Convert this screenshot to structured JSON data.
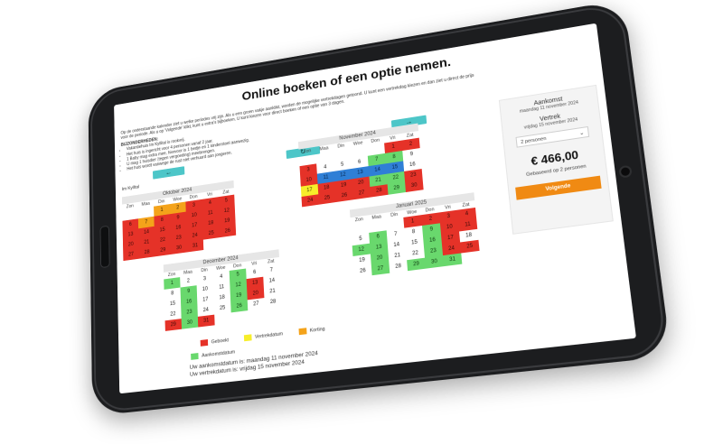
{
  "page": {
    "title": "Online boeken of een optie nemen.",
    "intro": "Op de onderstaande kalender ziet u welke periodes vrij zijn. Als u een groen vakje aanklikt, worden de mogelijke vertrekdagen getoond. U kunt een vertrekdag kiezen en dan ziet u direct de prijs voor de periode. Als u op 'Volgende' klikt, kunt u extra's bijboeken. U kunt kiezen voor direct boeken of een optie van 3 dagen.",
    "bijzonderheden_label": "BIJZONDERHEDEN:",
    "bullets": [
      "Vakantiehuis Im Kyllital is rookvrij.",
      "Het huis is ingericht voor 4 personen vanaf 2 jaar.",
      "1 Baby mag extra mee, hiervoor is 1 bedje en 1 kinderstoel aanwezig.",
      "U mag 1 huisdier (tegen vergoeding) meebrengen.",
      "Het huis wordt vanwege de rust niet verhuurd aan jongeren."
    ],
    "location": "Im Kylltal",
    "nav": {
      "prev": "←",
      "refresh": "↻",
      "next": "→"
    }
  },
  "weekdays": [
    "Zon",
    "Maa",
    "Din",
    "Woe",
    "Don",
    "Vri",
    "Zat"
  ],
  "months": [
    {
      "name": "Oktober 2024",
      "days": [
        {
          "n": "",
          "s": "blank"
        },
        {
          "n": "",
          "s": "blank"
        },
        {
          "n": "1",
          "s": "orange"
        },
        {
          "n": "2",
          "s": "orange"
        },
        {
          "n": "3",
          "s": "red"
        },
        {
          "n": "4",
          "s": "red"
        },
        {
          "n": "5",
          "s": "red"
        },
        {
          "n": "6",
          "s": "red"
        },
        {
          "n": "7",
          "s": "orange"
        },
        {
          "n": "8",
          "s": "red"
        },
        {
          "n": "9",
          "s": "red"
        },
        {
          "n": "10",
          "s": "red"
        },
        {
          "n": "11",
          "s": "red"
        },
        {
          "n": "12",
          "s": "red"
        },
        {
          "n": "13",
          "s": "red"
        },
        {
          "n": "14",
          "s": "red"
        },
        {
          "n": "15",
          "s": "red"
        },
        {
          "n": "16",
          "s": "red"
        },
        {
          "n": "17",
          "s": "red"
        },
        {
          "n": "18",
          "s": "red"
        },
        {
          "n": "19",
          "s": "red"
        },
        {
          "n": "20",
          "s": "red"
        },
        {
          "n": "21",
          "s": "red"
        },
        {
          "n": "22",
          "s": "red"
        },
        {
          "n": "23",
          "s": "red"
        },
        {
          "n": "24",
          "s": "red"
        },
        {
          "n": "25",
          "s": "red"
        },
        {
          "n": "26",
          "s": "red"
        },
        {
          "n": "27",
          "s": "red"
        },
        {
          "n": "28",
          "s": "red"
        },
        {
          "n": "29",
          "s": "red"
        },
        {
          "n": "30",
          "s": "red"
        },
        {
          "n": "31",
          "s": "red"
        }
      ]
    },
    {
      "name": "November 2024",
      "days": [
        {
          "n": "",
          "s": "blank"
        },
        {
          "n": "",
          "s": "blank"
        },
        {
          "n": "",
          "s": "blank"
        },
        {
          "n": "",
          "s": "blank"
        },
        {
          "n": "",
          "s": "blank"
        },
        {
          "n": "1",
          "s": "red"
        },
        {
          "n": "2",
          "s": "red"
        },
        {
          "n": "3",
          "s": "red"
        },
        {
          "n": "4",
          "s": "blank"
        },
        {
          "n": "5",
          "s": "blank"
        },
        {
          "n": "6",
          "s": "blank"
        },
        {
          "n": "7",
          "s": "green"
        },
        {
          "n": "8",
          "s": "green"
        },
        {
          "n": "9",
          "s": "blank"
        },
        {
          "n": "10",
          "s": "red"
        },
        {
          "n": "11",
          "s": "blue"
        },
        {
          "n": "12",
          "s": "blue"
        },
        {
          "n": "13",
          "s": "blue"
        },
        {
          "n": "14",
          "s": "blue"
        },
        {
          "n": "15",
          "s": "blue"
        },
        {
          "n": "16",
          "s": "blank"
        },
        {
          "n": "17",
          "s": "yellow"
        },
        {
          "n": "18",
          "s": "red"
        },
        {
          "n": "19",
          "s": "red"
        },
        {
          "n": "20",
          "s": "red"
        },
        {
          "n": "21",
          "s": "green"
        },
        {
          "n": "22",
          "s": "green"
        },
        {
          "n": "23",
          "s": "red"
        },
        {
          "n": "24",
          "s": "red"
        },
        {
          "n": "25",
          "s": "red"
        },
        {
          "n": "26",
          "s": "red"
        },
        {
          "n": "27",
          "s": "red"
        },
        {
          "n": "28",
          "s": "red"
        },
        {
          "n": "29",
          "s": "green"
        },
        {
          "n": "30",
          "s": "red"
        }
      ]
    },
    {
      "name": "December 2024",
      "days": [
        {
          "n": "1",
          "s": "green"
        },
        {
          "n": "2",
          "s": "blank"
        },
        {
          "n": "3",
          "s": "blank"
        },
        {
          "n": "4",
          "s": "blank"
        },
        {
          "n": "5",
          "s": "green"
        },
        {
          "n": "6",
          "s": "blank"
        },
        {
          "n": "7",
          "s": "blank"
        },
        {
          "n": "8",
          "s": "blank"
        },
        {
          "n": "9",
          "s": "green"
        },
        {
          "n": "10",
          "s": "blank"
        },
        {
          "n": "11",
          "s": "blank"
        },
        {
          "n": "12",
          "s": "green"
        },
        {
          "n": "13",
          "s": "red"
        },
        {
          "n": "14",
          "s": "blank"
        },
        {
          "n": "15",
          "s": "blank"
        },
        {
          "n": "16",
          "s": "green"
        },
        {
          "n": "17",
          "s": "blank"
        },
        {
          "n": "18",
          "s": "blank"
        },
        {
          "n": "19",
          "s": "green"
        },
        {
          "n": "20",
          "s": "red"
        },
        {
          "n": "21",
          "s": "blank"
        },
        {
          "n": "22",
          "s": "blank"
        },
        {
          "n": "23",
          "s": "green"
        },
        {
          "n": "24",
          "s": "blank"
        },
        {
          "n": "25",
          "s": "blank"
        },
        {
          "n": "26",
          "s": "green"
        },
        {
          "n": "27",
          "s": "blank"
        },
        {
          "n": "28",
          "s": "blank"
        },
        {
          "n": "29",
          "s": "red"
        },
        {
          "n": "30",
          "s": "green"
        },
        {
          "n": "31",
          "s": "red"
        }
      ]
    },
    {
      "name": "Januari 2025",
      "days": [
        {
          "n": "",
          "s": "blank"
        },
        {
          "n": "",
          "s": "blank"
        },
        {
          "n": "",
          "s": "blank"
        },
        {
          "n": "1",
          "s": "red"
        },
        {
          "n": "2",
          "s": "red"
        },
        {
          "n": "3",
          "s": "red"
        },
        {
          "n": "4",
          "s": "red"
        },
        {
          "n": "5",
          "s": "blank"
        },
        {
          "n": "6",
          "s": "green"
        },
        {
          "n": "7",
          "s": "blank"
        },
        {
          "n": "8",
          "s": "blank"
        },
        {
          "n": "9",
          "s": "green"
        },
        {
          "n": "10",
          "s": "red"
        },
        {
          "n": "11",
          "s": "red"
        },
        {
          "n": "12",
          "s": "green"
        },
        {
          "n": "13",
          "s": "green"
        },
        {
          "n": "14",
          "s": "blank"
        },
        {
          "n": "15",
          "s": "blank"
        },
        {
          "n": "16",
          "s": "green"
        },
        {
          "n": "17",
          "s": "red"
        },
        {
          "n": "18",
          "s": "blank"
        },
        {
          "n": "19",
          "s": "blank"
        },
        {
          "n": "20",
          "s": "green"
        },
        {
          "n": "21",
          "s": "blank"
        },
        {
          "n": "22",
          "s": "blank"
        },
        {
          "n": "23",
          "s": "green"
        },
        {
          "n": "24",
          "s": "red"
        },
        {
          "n": "25",
          "s": "red"
        },
        {
          "n": "26",
          "s": "blank"
        },
        {
          "n": "27",
          "s": "green"
        },
        {
          "n": "28",
          "s": "blank"
        },
        {
          "n": "29",
          "s": "green"
        },
        {
          "n": "30",
          "s": "green"
        },
        {
          "n": "31",
          "s": "green"
        }
      ]
    }
  ],
  "legend": {
    "geboekt": "Geboekt",
    "vertrekdatum": "Vertrekdatum",
    "korting": "Korting",
    "aankomstdatum": "Aankomstdatum",
    "colors": {
      "geboekt": "#e53228",
      "vertrekdatum": "#f7ee2a",
      "korting": "#f4a31a",
      "aankomstdatum": "#69d86d"
    }
  },
  "summary": {
    "arrival": "Uw aankomstdatum is: maandag 11 november 2024",
    "departure": "Uw vertrekdatum is: vrijdag 15 november 2024"
  },
  "booking": {
    "aankomst_label": "Aankomst",
    "aankomst_value": "maandag 11 november 2024",
    "vertrek_label": "Vertrek",
    "vertrek_value": "vrijdag 15 november 2024",
    "persons_selected": "2 personen",
    "price": "€ 466,00",
    "based_on": "Gebaseerd op 2 personen",
    "next_label": "Volgende"
  }
}
